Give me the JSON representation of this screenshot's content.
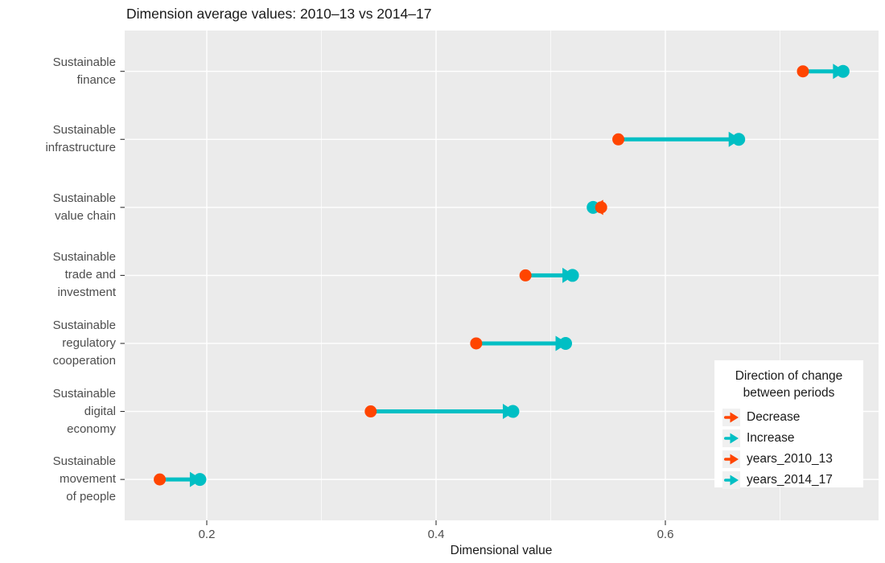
{
  "title": "Dimension average values: 2010–13 vs 2014–17",
  "colors": {
    "decrease": "#FF4500",
    "increase": "#00BFC4",
    "panel_bg": "#EBEBEB",
    "grid": "#FFFFFF",
    "tick": "#333333",
    "axis_text": "#4D4D4D",
    "legend_key_bg": "#F0F0F0"
  },
  "chart_data": {
    "type": "dumbbell-arrow",
    "title": "Dimension average values: 2010–13 vs 2014–17",
    "xlabel": "Dimensional value",
    "ylabel": "",
    "xlim": [
      0.128,
      0.786
    ],
    "x_ticks": [
      0.2,
      0.4,
      0.6
    ],
    "x_tick_labels": [
      "0.2",
      "0.4",
      "0.6"
    ],
    "x_minor_gridlines": [
      0.3,
      0.5,
      0.7
    ],
    "grid": "on",
    "series_names": [
      "years_2010_13",
      "years_2014_17"
    ],
    "rows": [
      {
        "category": "Sustainable finance",
        "category_label": "Sustainable\nfinance",
        "years_2010_13": 0.72,
        "years_2014_17": 0.755,
        "direction": "Increase"
      },
      {
        "category": "Sustainable infrastructure",
        "category_label": "Sustainable\ninfrastructure",
        "years_2010_13": 0.559,
        "years_2014_17": 0.664,
        "direction": "Increase"
      },
      {
        "category": "Sustainable value chain",
        "category_label": "Sustainable\nvalue chain",
        "years_2010_13": 0.544,
        "years_2014_17": 0.537,
        "direction": "Decrease"
      },
      {
        "category": "Sustainable trade and investment",
        "category_label": "Sustainable\ntrade and\ninvestment",
        "years_2010_13": 0.478,
        "years_2014_17": 0.519,
        "direction": "Increase"
      },
      {
        "category": "Sustainable regulatory cooperation",
        "category_label": "Sustainable\nregulatory\ncooperation",
        "years_2010_13": 0.435,
        "years_2014_17": 0.513,
        "direction": "Increase"
      },
      {
        "category": "Sustainable digital economy",
        "category_label": "Sustainable\ndigital\neconomy",
        "years_2010_13": 0.343,
        "years_2014_17": 0.467,
        "direction": "Increase"
      },
      {
        "category": "Sustainable movement of people",
        "category_label": "Sustainable\nmovement\nof people",
        "years_2010_13": 0.159,
        "years_2014_17": 0.194,
        "direction": "Increase"
      }
    ]
  },
  "legend": {
    "title": "Direction of change\nbetween periods",
    "position": "inside bottom-right",
    "items": [
      {
        "label": "Decrease",
        "color_key": "decrease"
      },
      {
        "label": "Increase",
        "color_key": "increase"
      },
      {
        "label": "years_2010_13",
        "color_key": "decrease"
      },
      {
        "label": "years_2014_17",
        "color_key": "increase"
      }
    ]
  }
}
